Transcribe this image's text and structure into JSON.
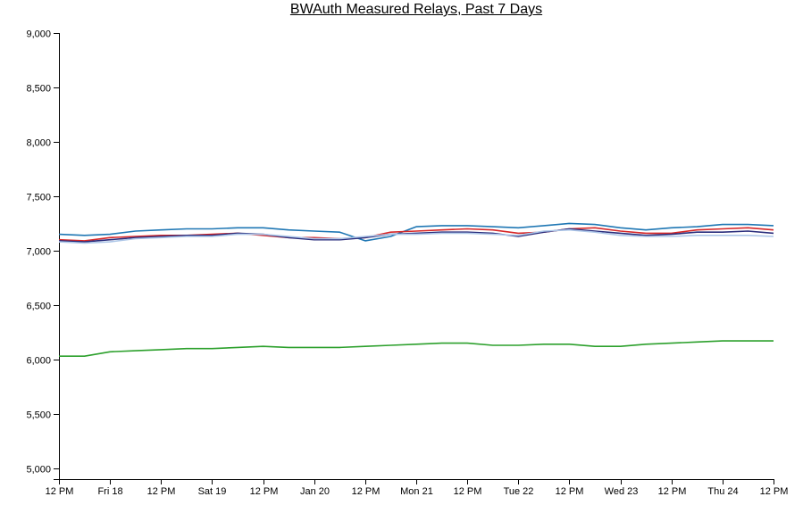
{
  "chart_data": {
    "type": "line",
    "title": "BWAuth Measured Relays, Past 7 Days",
    "xlabel": "",
    "ylabel": "",
    "ylim": [
      4900,
      9000
    ],
    "grid": false,
    "y_ticks": [
      "5,000",
      "5,500",
      "6,000",
      "6,500",
      "7,000",
      "7,500",
      "8,000",
      "8,500",
      "9,000"
    ],
    "y_tick_values": [
      5000,
      5500,
      6000,
      6500,
      7000,
      7500,
      8000,
      8500,
      9000
    ],
    "x_ticks": [
      "12 PM",
      "Fri 18",
      "12 PM",
      "Sat 19",
      "12 PM",
      "Jan 20",
      "12 PM",
      "Mon 21",
      "12 PM",
      "Tue 22",
      "12 PM",
      "Wed 23",
      "12 PM",
      "Thu 24",
      "12 PM"
    ],
    "x_tick_hours": [
      0,
      12,
      24,
      36,
      48,
      60,
      72,
      84,
      96,
      108,
      120,
      132,
      144,
      156,
      168
    ],
    "x_hours": [
      0,
      6,
      12,
      18,
      24,
      30,
      36,
      42,
      48,
      54,
      60,
      66,
      72,
      78,
      84,
      90,
      96,
      102,
      108,
      114,
      120,
      126,
      132,
      138,
      144,
      150,
      156,
      162,
      168
    ],
    "series": [
      {
        "color": "#1f77b4",
        "values": [
          7150,
          7140,
          7150,
          7180,
          7190,
          7200,
          7200,
          7210,
          7210,
          7190,
          7180,
          7170,
          7090,
          7130,
          7220,
          7230,
          7230,
          7220,
          7210,
          7230,
          7250,
          7240,
          7210,
          7190,
          7210,
          7220,
          7240,
          7240,
          7230
        ]
      },
      {
        "color": "#d62728",
        "values": [
          7100,
          7090,
          7120,
          7130,
          7140,
          7140,
          7150,
          7160,
          7140,
          7120,
          7120,
          7110,
          7120,
          7170,
          7180,
          7190,
          7200,
          7190,
          7160,
          7170,
          7200,
          7210,
          7180,
          7160,
          7160,
          7190,
          7200,
          7210,
          7190
        ]
      },
      {
        "color": "#2a2d7c",
        "values": [
          7090,
          7080,
          7100,
          7120,
          7130,
          7140,
          7140,
          7160,
          7150,
          7120,
          7100,
          7100,
          7120,
          7150,
          7160,
          7170,
          7170,
          7160,
          7130,
          7170,
          7200,
          7180,
          7160,
          7140,
          7150,
          7170,
          7170,
          7180,
          7160
        ]
      },
      {
        "color": "#aec7e8",
        "values": [
          7080,
          7070,
          7080,
          7110,
          7120,
          7130,
          7130,
          7150,
          7150,
          7130,
          7110,
          7110,
          7130,
          7150,
          7150,
          7160,
          7160,
          7150,
          7140,
          7180,
          7190,
          7170,
          7140,
          7130,
          7130,
          7140,
          7140,
          7140,
          7130
        ]
      },
      {
        "color": "#2ca02c",
        "values": [
          6030,
          6030,
          6070,
          6080,
          6090,
          6100,
          6100,
          6110,
          6120,
          6110,
          6110,
          6110,
          6120,
          6130,
          6140,
          6150,
          6150,
          6130,
          6130,
          6140,
          6140,
          6120,
          6120,
          6140,
          6150,
          6160,
          6170,
          6170,
          6170
        ]
      }
    ]
  }
}
